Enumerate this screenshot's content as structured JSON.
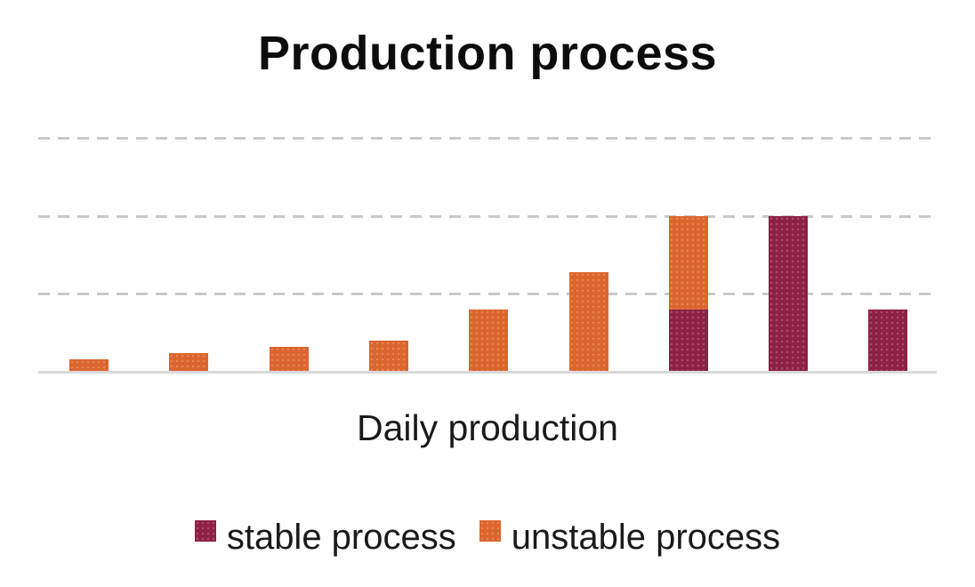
{
  "chart_data": {
    "type": "bar",
    "stacked": true,
    "title": "Production process",
    "xlabel": "Daily production",
    "categories": [
      "",
      "",
      "",
      "",
      "",
      "",
      "",
      "",
      ""
    ],
    "series": [
      {
        "name": "stable process",
        "color": "#8E2045",
        "values": [
          0,
          0,
          0,
          0,
          0,
          0,
          5,
          12.5,
          5
        ]
      },
      {
        "name": "unstable process",
        "color": "#DC652E",
        "values": [
          1,
          1.5,
          2,
          2.5,
          5,
          8,
          7.5,
          0,
          0
        ]
      }
    ],
    "ylim": [
      0,
      20.5
    ],
    "y_gridlines": [
      6.25,
      12.5,
      18.75
    ],
    "y_axis_labels_visible": false,
    "x_axis_labels_visible": false,
    "grid_style": "dashed",
    "grid_color": "#C9C9C9",
    "axis_line_color": "#D9D9D9",
    "background": "#FFFFFF",
    "title_color": "#0D0D0D",
    "text_color": "#1A1A1A",
    "legend_position": "bottom"
  }
}
